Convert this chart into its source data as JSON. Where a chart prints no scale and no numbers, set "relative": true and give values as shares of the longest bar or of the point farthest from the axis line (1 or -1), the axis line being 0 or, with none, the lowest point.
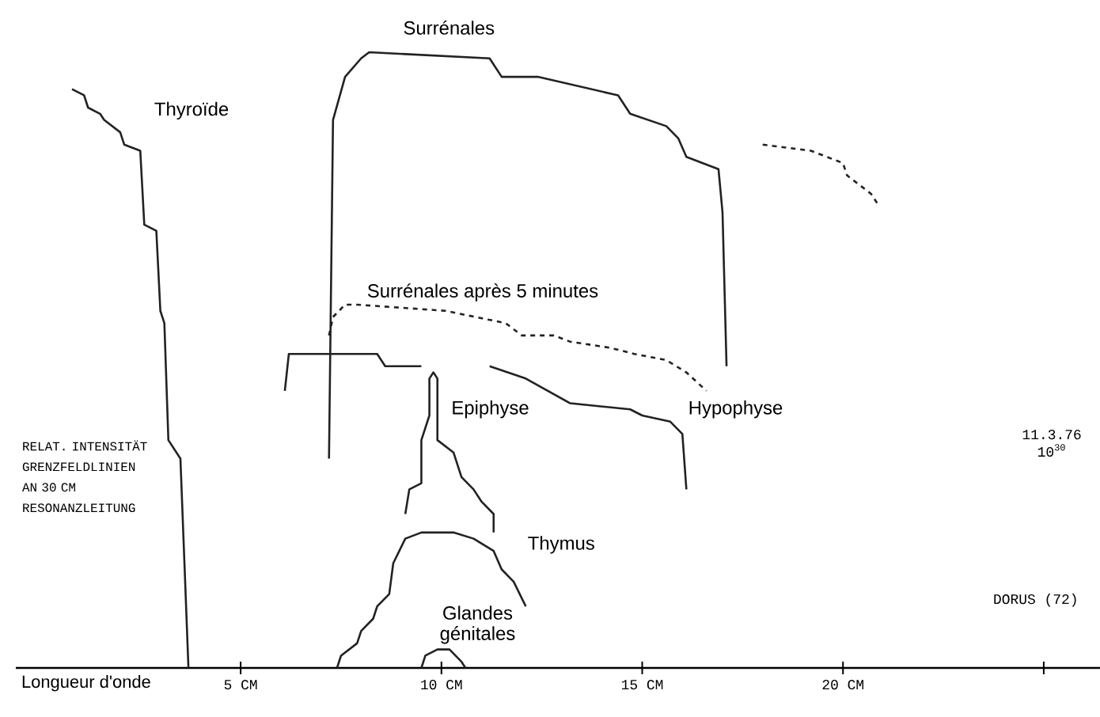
{
  "chart_data": {
    "type": "line",
    "relative": true,
    "marker": "none",
    "xlabel": "Longueur d'onde",
    "ylabel": "RELAT. INTENSITÄT GRENZFELDLINIEN AN 30 CM RESONANZLEITUNG",
    "xlim": [
      -0.6,
      26.4
    ],
    "xticks": [
      {
        "value": 5,
        "label": "5 CM"
      },
      {
        "value": 10,
        "label": "10 CM"
      },
      {
        "value": 15,
        "label": "15 CM"
      },
      {
        "value": 20,
        "label": "20 CM"
      },
      {
        "value": 25,
        "label": null
      }
    ],
    "annotations": [
      "11.3.76 10$^{30}$",
      "DORUS (72)"
    ],
    "series": [
      {
        "name": "Thyroïde",
        "color": "#222222",
        "x": [
          0.8,
          1.1,
          1.2,
          1.5,
          1.6,
          1.8,
          2.0,
          2.1,
          2.5,
          2.6,
          2.9,
          3.0,
          3.1,
          3.2,
          3.5,
          3.7
        ],
        "values": [
          0.94,
          0.93,
          0.91,
          0.9,
          0.89,
          0.88,
          0.87,
          0.85,
          0.84,
          0.72,
          0.71,
          0.58,
          0.56,
          0.37,
          0.34,
          0
        ]
      },
      {
        "name": "Surrénales",
        "color": "#222222",
        "x": [
          7.2,
          7.3,
          7.6,
          8.0,
          8.2,
          11.2,
          11.5,
          12.4,
          14.4,
          14.7,
          15.6,
          15.9,
          16.1,
          16.9,
          17.0,
          17.1
        ],
        "values": [
          0.34,
          0.89,
          0.96,
          0.99,
          1.0,
          0.99,
          0.96,
          0.96,
          0.93,
          0.9,
          0.88,
          0.86,
          0.83,
          0.81,
          0.74,
          0.49
        ]
      },
      {
        "color": "#222222",
        "line_style": "dashed",
        "x": [
          18.0,
          19.2,
          20.0,
          20.1,
          20.7,
          20.9
        ],
        "values": [
          0.85,
          0.84,
          0.82,
          0.8,
          0.77,
          0.75
        ]
      },
      {
        "name": "Surrénales après 5 minutes",
        "color": "#222222",
        "line_style": "dashed",
        "x": [
          7.2,
          7.3,
          7.6,
          7.9,
          10.1,
          11.6,
          12.0,
          12.8,
          13.2,
          14.2,
          14.8,
          15.6,
          16.1,
          16.6
        ],
        "values": [
          0.54,
          0.57,
          0.59,
          0.59,
          0.58,
          0.56,
          0.54,
          0.54,
          0.53,
          0.52,
          0.51,
          0.5,
          0.48,
          0.45
        ]
      },
      {
        "name": "Hypophyse",
        "color": "#222222",
        "x": [
          6.1,
          6.2,
          6.5,
          8.4,
          8.6,
          9.5,
          null,
          11.2,
          12.1,
          13.2,
          14.7,
          15.0,
          15.7,
          16.0,
          16.1
        ],
        "values": [
          0.45,
          0.51,
          0.51,
          0.51,
          0.49,
          0.49,
          null,
          0.49,
          0.47,
          0.43,
          0.42,
          0.41,
          0.4,
          0.38,
          0.29
        ]
      },
      {
        "name": "Epiphyse",
        "color": "#222222",
        "x": [
          9.1,
          9.2,
          9.5,
          9.5,
          9.7,
          9.7,
          9.8,
          9.9,
          9.9,
          10.3,
          10.5,
          10.8,
          11.0,
          11.3,
          11.3
        ],
        "values": [
          0.25,
          0.29,
          0.3,
          0.37,
          0.41,
          0.47,
          0.48,
          0.47,
          0.37,
          0.35,
          0.31,
          0.29,
          0.27,
          0.25,
          0.22
        ]
      },
      {
        "name": "Thymus",
        "color": "#222222",
        "x": [
          7.4,
          7.5,
          7.9,
          8.0,
          8.3,
          8.4,
          8.7,
          8.8,
          9.1,
          9.5,
          10.3,
          10.8,
          11.3,
          11.5,
          11.8,
          12.1
        ],
        "values": [
          0,
          0.02,
          0.04,
          0.06,
          0.08,
          0.1,
          0.12,
          0.17,
          0.21,
          0.22,
          0.22,
          0.21,
          0.19,
          0.16,
          0.14,
          0.1
        ]
      },
      {
        "name": "Glandes génitales",
        "color": "#222222",
        "x": [
          9.5,
          9.6,
          9.9,
          10.2,
          10.5,
          10.6
        ],
        "values": [
          0,
          0.02,
          0.03,
          0.03,
          0.01,
          0
        ]
      }
    ]
  }
}
